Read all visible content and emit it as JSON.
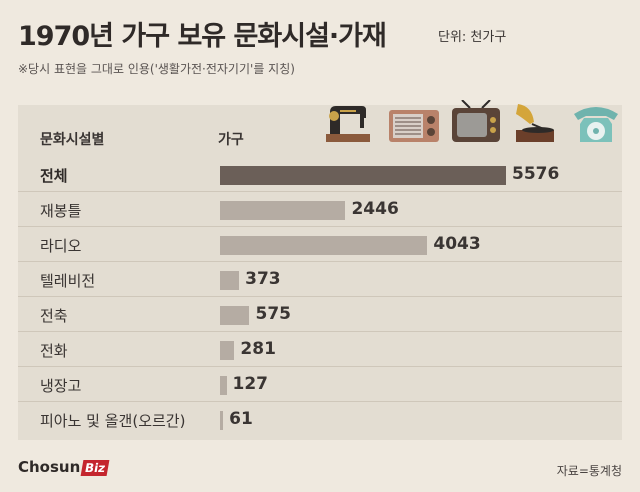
{
  "title": "1970년 가구 보유 문화시설·가재",
  "unit": "단위: 천가구",
  "note": "※당시 표현을 그대로 인용('생활가전·전자기기'를 지칭)",
  "header": {
    "category_col": "문화시설별",
    "value_col": "가구"
  },
  "chart_data": {
    "type": "bar",
    "orientation": "horizontal",
    "categories": [
      "전체",
      "재봉틀",
      "라디오",
      "텔레비전",
      "전축",
      "전화",
      "냉장고",
      "피아노 및 올갠(오르간)"
    ],
    "values": [
      5576,
      2446,
      4043,
      373,
      575,
      281,
      127,
      61
    ],
    "value_labels": [
      "5576",
      "2446",
      "4043",
      "373",
      "575",
      "281",
      "127",
      "61"
    ],
    "xlim": [
      0,
      5576
    ],
    "colors": {
      "total": "#6b5f58",
      "item": "#b5aca3"
    }
  },
  "icons": [
    "sewing-machine-icon",
    "radio-icon",
    "television-icon",
    "gramophone-icon",
    "telephone-icon"
  ],
  "logo": {
    "main": "Chosun",
    "badge": "Biz"
  },
  "source": "자료=통계청"
}
